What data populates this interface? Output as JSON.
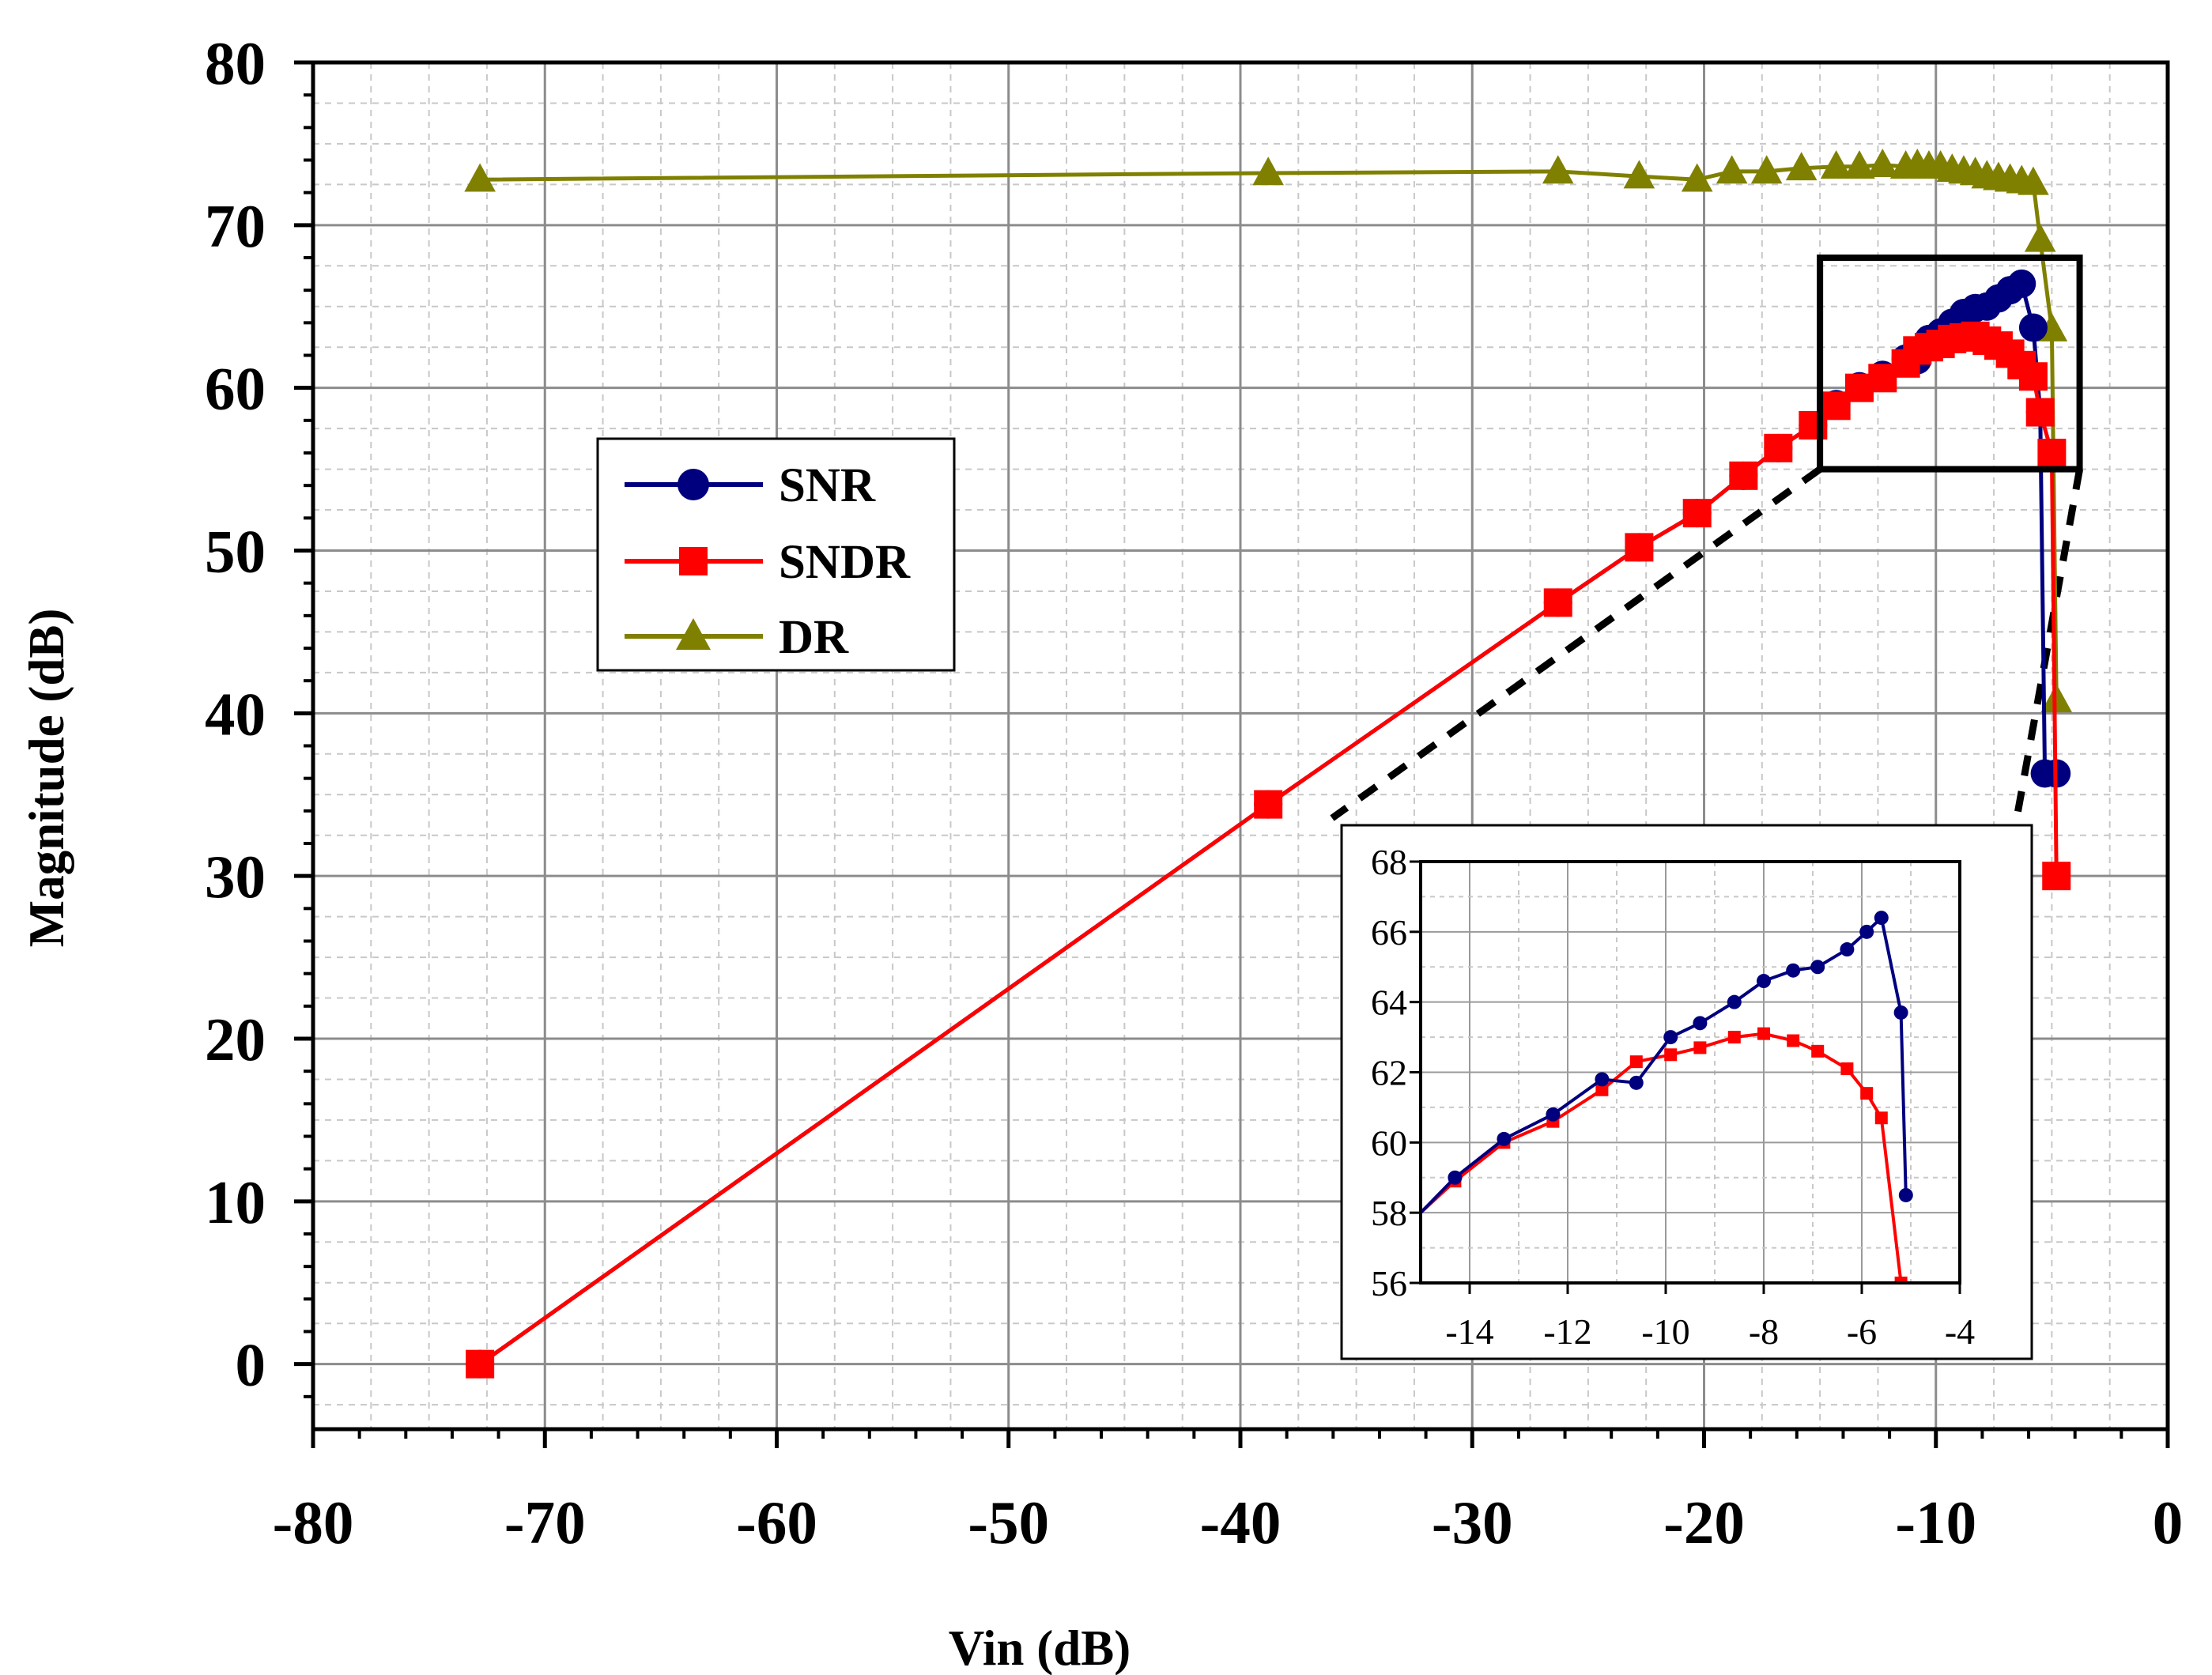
{
  "chart_data": [
    {
      "id": "main",
      "type": "line",
      "xlabel": "Vin (dB)",
      "ylabel": "Magnitude (dB)",
      "xlim": [
        -80,
        0
      ],
      "ylim": [
        -4,
        80
      ],
      "xticks": [
        -80,
        -70,
        -60,
        -50,
        -40,
        -30,
        -20,
        -10,
        0
      ],
      "yticks": [
        0,
        10,
        20,
        30,
        40,
        50,
        60,
        70,
        80
      ],
      "grid": true,
      "legend_position": "center-left",
      "series": [
        {
          "name": "SNR",
          "color": "#00007f",
          "marker": "circle",
          "x": [
            -72.8,
            -38.8,
            -26.3,
            -22.8,
            -20.3,
            -18.3,
            -16.8,
            -15.3,
            -14.3,
            -13.3,
            -12.3,
            -11.3,
            -10.8,
            -10.3,
            -9.8,
            -9.3,
            -8.8,
            -8.3,
            -7.8,
            -7.3,
            -6.8,
            -6.3,
            -5.8,
            -5.5,
            -5.3,
            -4.8
          ],
          "y": [
            0,
            34.4,
            46.8,
            50.2,
            52.3,
            54.6,
            56.3,
            57.7,
            59.0,
            60.1,
            60.8,
            61.8,
            61.7,
            63.0,
            63.4,
            64.0,
            64.6,
            64.9,
            65.0,
            65.5,
            66.0,
            66.4,
            63.7,
            58.5,
            36.3,
            36.3
          ]
        },
        {
          "name": "SNDR",
          "color": "#ff0000",
          "marker": "square",
          "x": [
            -72.8,
            -38.8,
            -26.3,
            -22.8,
            -20.3,
            -18.3,
            -16.8,
            -15.3,
            -14.3,
            -13.3,
            -12.3,
            -11.3,
            -10.8,
            -10.3,
            -9.8,
            -9.3,
            -8.8,
            -8.3,
            -7.8,
            -7.3,
            -6.8,
            -6.3,
            -5.8,
            -5.5,
            -5.0,
            -4.8
          ],
          "y": [
            0,
            34.4,
            46.8,
            50.2,
            52.3,
            54.6,
            56.3,
            57.7,
            58.9,
            60.0,
            60.6,
            61.5,
            62.3,
            62.5,
            62.7,
            63.0,
            63.1,
            63.2,
            62.9,
            62.6,
            62.1,
            61.4,
            60.7,
            58.5,
            56.0,
            30.0
          ]
        },
        {
          "name": "DR",
          "color": "#808000",
          "marker": "triangle",
          "x": [
            -72.8,
            -38.8,
            -26.3,
            -22.8,
            -20.3,
            -18.8,
            -17.3,
            -15.8,
            -14.3,
            -13.3,
            -12.3,
            -11.3,
            -10.8,
            -10.3,
            -9.8,
            -9.3,
            -8.8,
            -8.3,
            -7.8,
            -7.3,
            -6.8,
            -6.3,
            -5.8,
            -5.5,
            -5.0,
            -4.8
          ],
          "y": [
            72.8,
            73.2,
            73.3,
            73.0,
            72.8,
            73.3,
            73.3,
            73.5,
            73.6,
            73.6,
            73.7,
            73.6,
            73.7,
            73.6,
            73.6,
            73.4,
            73.3,
            73.2,
            73.0,
            72.9,
            72.8,
            72.7,
            72.6,
            69.1,
            63.6,
            40.8
          ]
        }
      ]
    },
    {
      "id": "inset",
      "type": "line",
      "xlim": [
        -15,
        -4
      ],
      "ylim": [
        56,
        68
      ],
      "xticks": [
        -14,
        -12,
        -10,
        -8,
        -6,
        -4
      ],
      "yticks": [
        56,
        58,
        60,
        62,
        64,
        66,
        68
      ],
      "grid": true,
      "zoom_region": {
        "x": [
          -15,
          -3.8
        ],
        "y": [
          55,
          68
        ]
      },
      "series": [
        {
          "name": "SNR",
          "color": "#00007f",
          "x": [
            -15.0,
            -14.3,
            -13.3,
            -12.3,
            -11.3,
            -10.6,
            -9.9,
            -9.3,
            -8.6,
            -8.0,
            -7.4,
            -6.9,
            -6.3,
            -5.9,
            -5.6,
            -5.2,
            -5.1
          ],
          "y": [
            58.0,
            59.0,
            60.1,
            60.8,
            61.8,
            61.7,
            63.0,
            63.4,
            64.0,
            64.6,
            64.9,
            65.0,
            65.5,
            66.0,
            66.4,
            63.7,
            58.5
          ]
        },
        {
          "name": "SNDR",
          "color": "#ff0000",
          "x": [
            -15.0,
            -14.3,
            -13.3,
            -12.3,
            -11.3,
            -10.6,
            -9.9,
            -9.3,
            -8.6,
            -8.0,
            -7.4,
            -6.9,
            -6.3,
            -5.9,
            -5.6,
            -5.2
          ],
          "y": [
            58.0,
            58.9,
            60.0,
            60.6,
            61.5,
            62.3,
            62.5,
            62.7,
            63.0,
            63.1,
            62.9,
            62.6,
            62.1,
            61.4,
            60.7,
            56.0
          ]
        }
      ]
    }
  ]
}
